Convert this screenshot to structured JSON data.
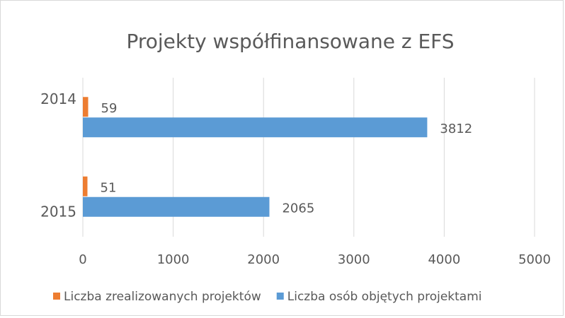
{
  "chart_data": {
    "type": "hbar",
    "title": "Projekty współfinansowane z EFS",
    "categories": [
      "2014",
      "2015"
    ],
    "series": [
      {
        "name": "Liczba zrealizowanych projektów",
        "color": "#ed7d31",
        "values": [
          59,
          51
        ]
      },
      {
        "name": "Liczba osób objętych projektami",
        "color": "#5b9bd5",
        "values": [
          3812,
          2065
        ]
      }
    ],
    "xlim": [
      0,
      5000
    ],
    "xticks": [
      0,
      1000,
      2000,
      3000,
      4000,
      5000
    ],
    "grid": true,
    "legend": "bottom"
  }
}
